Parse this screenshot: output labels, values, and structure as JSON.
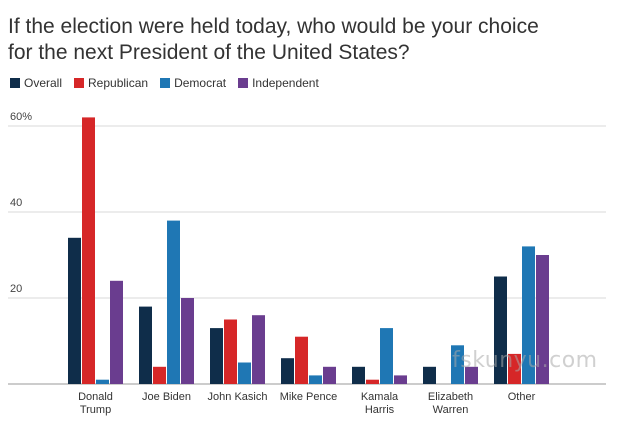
{
  "title_lines": [
    "If the election were held today, who would be your choice",
    "for the next President of the United States?"
  ],
  "watermark": "fskunyu.com",
  "chart_data": {
    "type": "bar",
    "title": "If the election were held today, who would be your choice for the next President of the United States?",
    "xlabel": "",
    "ylabel": "",
    "ylim": [
      0,
      65
    ],
    "yticks": [
      20,
      40,
      60
    ],
    "ytick_labels": [
      "20",
      "40",
      "60%"
    ],
    "categories": [
      [
        "Donald",
        "Trump"
      ],
      [
        "Joe Biden"
      ],
      [
        "John Kasich"
      ],
      [
        "Mike Pence"
      ],
      [
        "Kamala",
        "Harris"
      ],
      [
        "Elizabeth",
        "Warren"
      ],
      [
        "Other"
      ]
    ],
    "series": [
      {
        "name": "Overall",
        "color": "#0f2d4a",
        "values": [
          34,
          18,
          13,
          6,
          4,
          4,
          25
        ]
      },
      {
        "name": "Republican",
        "color": "#d62728",
        "values": [
          62,
          4,
          15,
          11,
          1,
          0,
          7
        ]
      },
      {
        "name": "Democrat",
        "color": "#1f77b4",
        "values": [
          1,
          38,
          5,
          2,
          13,
          9,
          32
        ]
      },
      {
        "name": "Independent",
        "color": "#6a3d8f",
        "values": [
          24,
          20,
          16,
          4,
          2,
          4,
          30
        ]
      }
    ],
    "legend_position": "top-left",
    "grid": true
  }
}
